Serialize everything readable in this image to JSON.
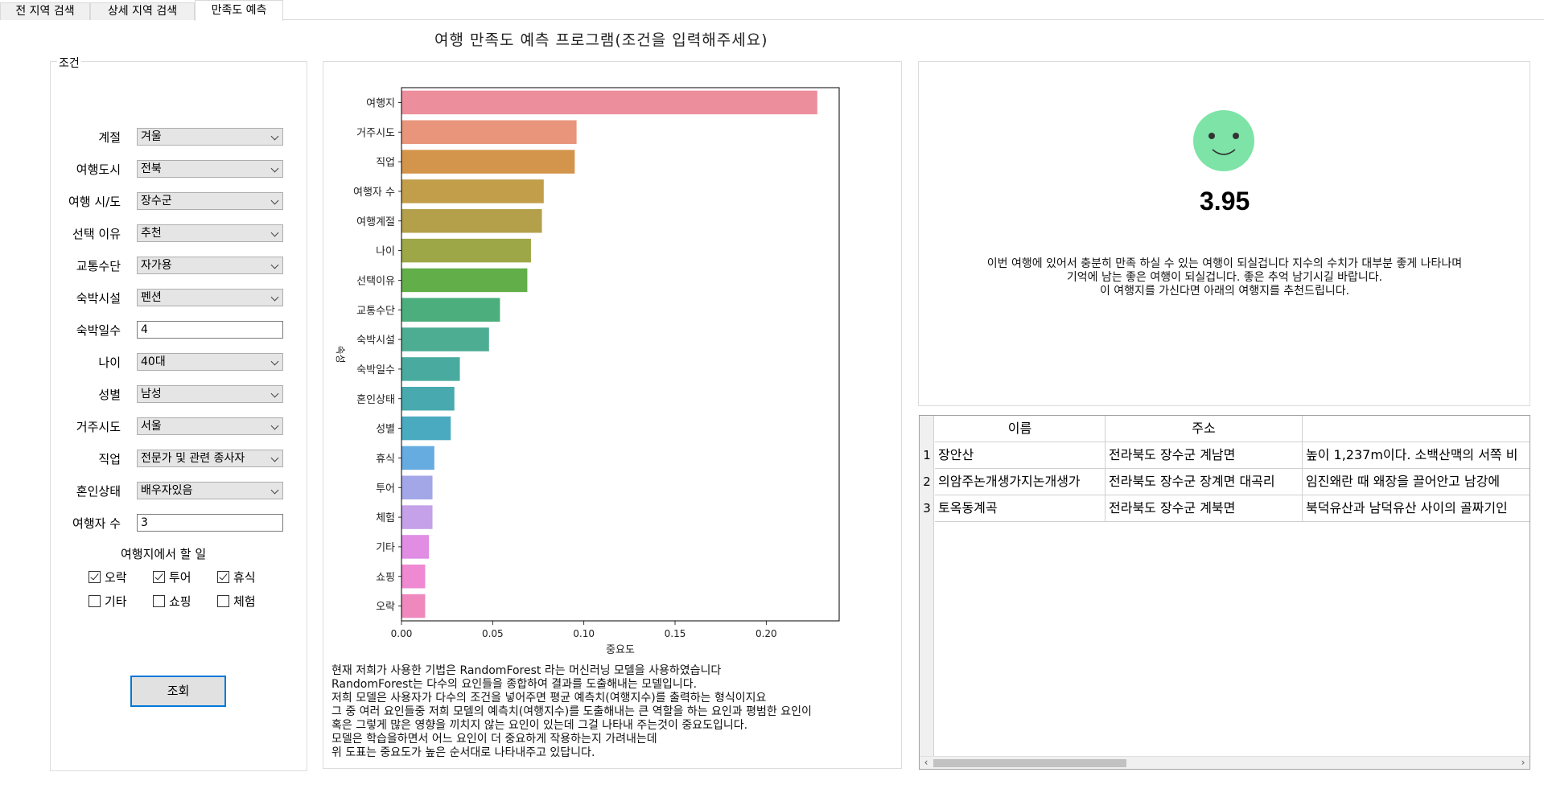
{
  "tabs": [
    {
      "label": "전 지역 검색"
    },
    {
      "label": "상세 지역 검색"
    },
    {
      "label": "만족도 예측"
    }
  ],
  "app_title": "여행 만족도 예측 프로그램(조건을 입력해주세요)",
  "conditions": {
    "legend": "조건",
    "fields": [
      {
        "label": "계절",
        "value": "겨울",
        "type": "combo"
      },
      {
        "label": "여행도시",
        "value": "전북",
        "type": "combo"
      },
      {
        "label": "여행 시/도",
        "value": "장수군",
        "type": "combo"
      },
      {
        "label": "선택 이유",
        "value": "추천",
        "type": "combo"
      },
      {
        "label": "교통수단",
        "value": "자가용",
        "type": "combo"
      },
      {
        "label": "숙박시설",
        "value": "펜션",
        "type": "combo"
      },
      {
        "label": "숙박일수",
        "value": "4",
        "type": "text"
      },
      {
        "label": "나이",
        "value": "40대",
        "type": "combo"
      },
      {
        "label": "성별",
        "value": "남성",
        "type": "combo"
      },
      {
        "label": "거주시도",
        "value": "서울",
        "type": "combo"
      },
      {
        "label": "직업",
        "value": "전문가 및 관련 종사자",
        "type": "combo"
      },
      {
        "label": "혼인상태",
        "value": "배우자있음",
        "type": "combo"
      },
      {
        "label": "여행자 수",
        "value": "3",
        "type": "text"
      }
    ],
    "activities_label": "여행지에서 할 일",
    "activities": [
      {
        "label": "오락",
        "checked": true
      },
      {
        "label": "투어",
        "checked": true
      },
      {
        "label": "휴식",
        "checked": true
      },
      {
        "label": "기타",
        "checked": false
      },
      {
        "label": "쇼핑",
        "checked": false
      },
      {
        "label": "체험",
        "checked": false
      }
    ],
    "query_button": "조회"
  },
  "chart_data": {
    "type": "bar",
    "orientation": "horizontal",
    "categories": [
      "여행지",
      "거주시도",
      "직업",
      "여행자 수",
      "여행계절",
      "나이",
      "선택이유",
      "교통수단",
      "숙박시설",
      "숙박일수",
      "혼인상태",
      "성별",
      "휴식",
      "투어",
      "체험",
      "기타",
      "쇼핑",
      "오락"
    ],
    "values": [
      0.228,
      0.096,
      0.095,
      0.078,
      0.077,
      0.071,
      0.069,
      0.054,
      0.048,
      0.032,
      0.029,
      0.027,
      0.018,
      0.017,
      0.017,
      0.015,
      0.013,
      0.013
    ],
    "colors": [
      "#ec8e9c",
      "#e8957c",
      "#d3954c",
      "#c29d4a",
      "#b4a04a",
      "#9ea747",
      "#62ae49",
      "#4bae7c",
      "#4cad93",
      "#49ab9f",
      "#48aaae",
      "#4aaac0",
      "#66ace0",
      "#a3a7e8",
      "#c4a1e8",
      "#e08de3",
      "#ee89d2",
      "#ef89bd"
    ],
    "xlabel": "중요도",
    "ylabel": "속성",
    "xticks": [
      0.0,
      0.05,
      0.1,
      0.15,
      0.2
    ],
    "xtick_labels": [
      "0.00",
      "0.05",
      "0.10",
      "0.15",
      "0.20"
    ],
    "xlim": [
      0,
      0.24
    ]
  },
  "description_lines": [
    "현재 저희가 사용한 기법은 RandomForest 라는 머신러닝 모델을 사용하였습니다",
    "RandomForest는 다수의 요인들을 종합하여 결과를 도출해내는 모델입니다.",
    "저희 모델은 사용자가 다수의 조건을 넣어주면 평균 예측치(여행지수)를 출력하는 형식이지요",
    "그 중 여러 요인들중 저희 모델의 예측치(여행지수)를 도출해내는 큰 역할을 하는 요인과 평범한 요인이",
    "혹은 그렇게 많은 영향을 끼치지 않는 요인이 있는데 그걸 나타내 주는것이 중요도입니다.",
    "모델은 학습을하면서 어느 요인이 더 중요하게 작용하는지 가려내는데",
    "위 도표는 중요도가 높은 순서대로 나타내주고 있답니다."
  ],
  "result": {
    "face_color": "#7de3a6",
    "score": "3.95",
    "message_lines": [
      "이번 여행에 있어서 충분히 만족 하실 수 있는 여행이 되실겁니다 지수의 수치가 대부분 좋게 나타나며",
      "기억에 남는 좋은 여행이 되실겁니다. 좋은 추억 남기시길 바랍니다.",
      "이 여행지를 가신다면 아래의 여행지를 추천드립니다."
    ]
  },
  "recommend_table": {
    "columns": [
      "이름",
      "주소",
      ""
    ],
    "rows": [
      {
        "num": "1",
        "name": "장안산",
        "address": "전라북도 장수군 계남면",
        "desc": "높이 1,237m이다. 소백산맥의 서쪽 비"
      },
      {
        "num": "2",
        "name": "의암주논개생가지논개생가",
        "address": "전라북도 장수군 장계면 대곡리",
        "desc": "임진왜란 때 왜장을 끌어안고 남강에"
      },
      {
        "num": "3",
        "name": "토옥동계곡",
        "address": "전라북도 장수군 계북면",
        "desc": "북덕유산과 남덕유산 사이의 골짜기인"
      }
    ]
  }
}
